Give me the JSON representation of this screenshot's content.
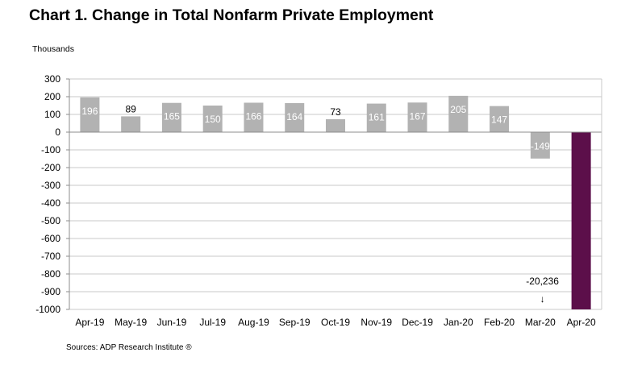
{
  "chart_data": {
    "type": "bar",
    "title": "Chart 1. Change in Total Nonfarm Private Employment",
    "ylabel": "Thousands",
    "xlabel": "",
    "source": "Sources: ADP Research Institute ®",
    "ylim": [
      -1000,
      300
    ],
    "yticks": [
      300,
      200,
      100,
      0,
      -100,
      -200,
      -300,
      -400,
      -500,
      -600,
      -700,
      -800,
      -900,
      -1000
    ],
    "grid": true,
    "axis_break": "The Apr-20 bar is cut off at the bottom of the axis; its value (-20,236) is far below the axis minimum.",
    "categories": [
      "Apr-19",
      "May-19",
      "Jun-19",
      "Jul-19",
      "Aug-19",
      "Sep-19",
      "Oct-19",
      "Nov-19",
      "Dec-19",
      "Jan-20",
      "Feb-20",
      "Mar-20",
      "Apr-20"
    ],
    "values": [
      196,
      89,
      165,
      150,
      166,
      164,
      73,
      161,
      167,
      205,
      147,
      -149,
      -20236
    ],
    "data_labels": [
      "196",
      "89",
      "165",
      "150",
      "166",
      "164",
      "73",
      "161",
      "167",
      "205",
      "147",
      "-149",
      "-20,236"
    ],
    "colors": {
      "bar": "#b2b2b2",
      "highlight_bar": "#5c0f4a",
      "grid": "#c8c8c8",
      "label_inside": "#ffffff",
      "label_outside": "#000000"
    },
    "arrow_glyph": "↓"
  }
}
